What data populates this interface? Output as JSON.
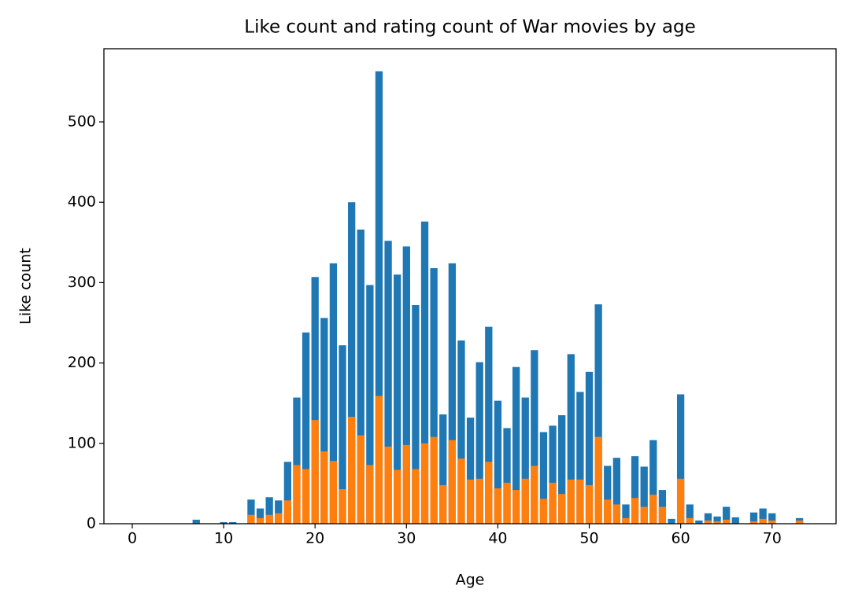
{
  "chart_data": {
    "type": "bar",
    "title": "Like count and rating count of War movies by age",
    "xlabel": "Age",
    "ylabel": "Like count",
    "x": [
      7,
      10,
      11,
      13,
      14,
      15,
      16,
      17,
      18,
      19,
      20,
      21,
      22,
      23,
      24,
      25,
      26,
      27,
      28,
      29,
      30,
      31,
      32,
      33,
      34,
      35,
      36,
      37,
      38,
      39,
      40,
      41,
      42,
      43,
      44,
      45,
      46,
      47,
      48,
      49,
      50,
      51,
      52,
      53,
      54,
      55,
      56,
      57,
      58,
      59,
      60,
      61,
      62,
      63,
      64,
      65,
      66,
      68,
      69,
      70,
      73
    ],
    "series": [
      {
        "color": "#1f77b4",
        "values": [
          5,
          2,
          2,
          30,
          19,
          33,
          29,
          77,
          157,
          238,
          307,
          256,
          324,
          222,
          400,
          366,
          297,
          563,
          352,
          310,
          345,
          272,
          376,
          318,
          136,
          324,
          228,
          132,
          201,
          245,
          153,
          119,
          195,
          157,
          216,
          114,
          122,
          135,
          211,
          164,
          189,
          273,
          72,
          82,
          24,
          84,
          71,
          104,
          42,
          6,
          161,
          24,
          4,
          13,
          9,
          21,
          8,
          14,
          19,
          13,
          7
        ]
      },
      {
        "color": "#ff7f0e",
        "values": [
          0,
          0,
          0,
          11,
          7,
          11,
          13,
          29,
          73,
          68,
          129,
          90,
          78,
          43,
          133,
          110,
          73,
          159,
          96,
          67,
          98,
          68,
          100,
          108,
          48,
          104,
          81,
          55,
          56,
          77,
          44,
          51,
          42,
          56,
          72,
          31,
          51,
          37,
          55,
          55,
          48,
          108,
          30,
          24,
          7,
          32,
          21,
          36,
          21,
          0,
          56,
          7,
          0,
          4,
          3,
          5,
          0,
          3,
          6,
          4,
          4
        ]
      }
    ],
    "xlim": [
      -3.1,
      77
    ],
    "ylim": [
      0,
      591
    ],
    "xticks": [
      0,
      10,
      20,
      30,
      40,
      50,
      60,
      70
    ],
    "yticks": [
      0,
      100,
      200,
      300,
      400,
      500
    ],
    "bar_width": 0.8
  }
}
